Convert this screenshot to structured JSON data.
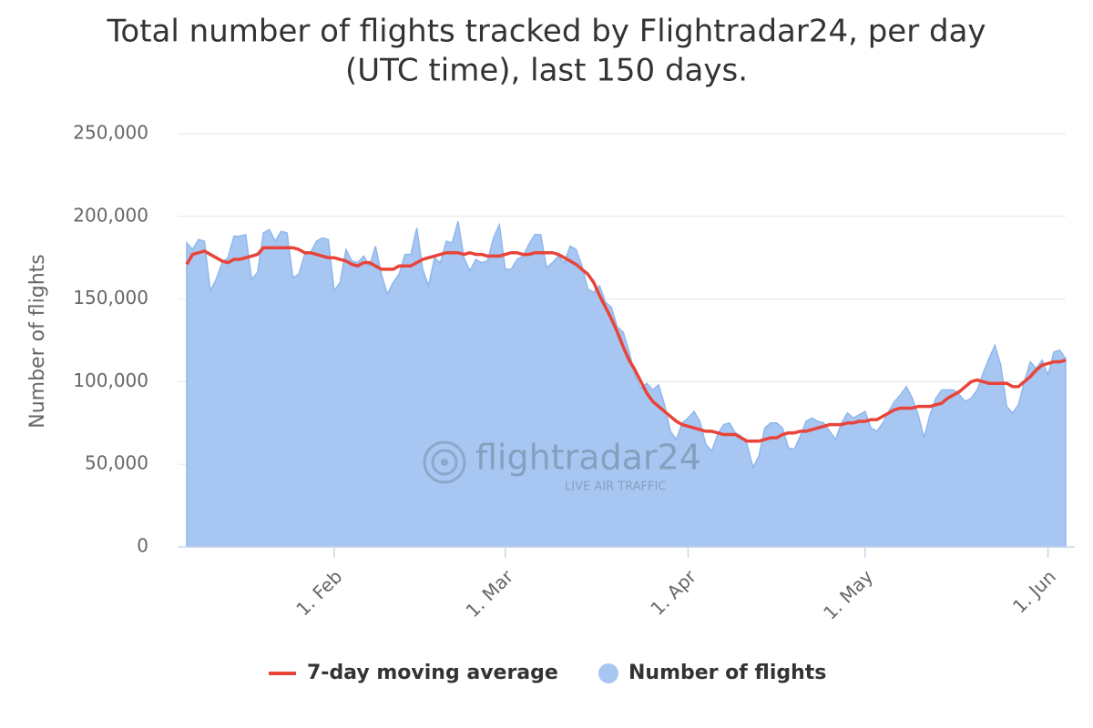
{
  "chart_data": {
    "type": "area",
    "title": "Total number of flights tracked by Flightradar24, per day",
    "subtitle": "(UTC time), last 150 days.",
    "y_label": "Number of flights",
    "watermark": {
      "brand": "flightradar24",
      "tagline": "LIVE AIR TRAFFIC"
    },
    "x": [
      0,
      1,
      2,
      3,
      4,
      5,
      6,
      7,
      8,
      9,
      10,
      11,
      12,
      13,
      14,
      15,
      16,
      17,
      18,
      19,
      20,
      21,
      22,
      23,
      24,
      25,
      26,
      27,
      28,
      29,
      30,
      31,
      32,
      33,
      34,
      35,
      36,
      37,
      38,
      39,
      40,
      41,
      42,
      43,
      44,
      45,
      46,
      47,
      48,
      49,
      50,
      51,
      52,
      53,
      54,
      55,
      56,
      57,
      58,
      59,
      60,
      61,
      62,
      63,
      64,
      65,
      66,
      67,
      68,
      69,
      70,
      71,
      72,
      73,
      74,
      75,
      76,
      77,
      78,
      79,
      80,
      81,
      82,
      83,
      84,
      85,
      86,
      87,
      88,
      89,
      90,
      91,
      92,
      93,
      94,
      95,
      96,
      97,
      98,
      99,
      100,
      101,
      102,
      103,
      104,
      105,
      106,
      107,
      108,
      109,
      110,
      111,
      112,
      113,
      114,
      115,
      116,
      117,
      118,
      119,
      120,
      121,
      122,
      123,
      124,
      125,
      126,
      127,
      128,
      129,
      130,
      131,
      132,
      133,
      134,
      135,
      136,
      137,
      138,
      139,
      140,
      141,
      142,
      143,
      144,
      145,
      146,
      147,
      148,
      149
    ],
    "xlim": [
      0,
      149
    ],
    "xticks": [
      {
        "value": 25,
        "label": "1. Feb"
      },
      {
        "value": 54,
        "label": "1. Mar"
      },
      {
        "value": 85,
        "label": "1. Apr"
      },
      {
        "value": 115,
        "label": "1. May"
      },
      {
        "value": 146,
        "label": "1. Jun"
      }
    ],
    "ylim": [
      0,
      250000
    ],
    "yticks": [
      0,
      {
        "value": 50000,
        "label": "50,000"
      },
      {
        "value": 100000,
        "label": "100,000"
      },
      {
        "value": 150000,
        "label": "150,000"
      },
      {
        "value": 200000,
        "label": "200,000"
      },
      {
        "value": 250000,
        "label": "250,000"
      }
    ],
    "grid": true,
    "legend": "bottom",
    "series": [
      {
        "name": "7-day moving average",
        "type": "line",
        "color": "#e8443a",
        "values": [
          171000,
          177000,
          178000,
          179000,
          177000,
          175000,
          173000,
          172000,
          174000,
          174000,
          175000,
          176000,
          177000,
          181000,
          181000,
          181000,
          181000,
          181000,
          181000,
          180000,
          178000,
          178000,
          177000,
          176000,
          175000,
          175000,
          174000,
          173000,
          171000,
          170000,
          172000,
          172000,
          170000,
          168000,
          168000,
          168000,
          170000,
          170000,
          170000,
          172000,
          174000,
          175000,
          176000,
          177000,
          178000,
          178000,
          178000,
          177000,
          178000,
          177000,
          177000,
          176000,
          176000,
          176000,
          177000,
          178000,
          178000,
          177000,
          177000,
          178000,
          178000,
          178000,
          178000,
          177000,
          175000,
          173000,
          171000,
          168000,
          165000,
          160000,
          152000,
          145000,
          138000,
          130000,
          121000,
          113000,
          107000,
          100000,
          93000,
          88000,
          85000,
          82000,
          79000,
          76000,
          74000,
          73000,
          72000,
          71000,
          70000,
          70000,
          69000,
          68000,
          68000,
          68000,
          66000,
          64000,
          64000,
          64000,
          65000,
          66000,
          66000,
          68000,
          69000,
          69000,
          70000,
          70000,
          71000,
          72000,
          73000,
          74000,
          74000,
          74000,
          75000,
          75000,
          76000,
          76000,
          77000,
          77000,
          79000,
          81000,
          83000,
          84000,
          84000,
          84000,
          85000,
          85000,
          85000,
          86000,
          87000,
          90000,
          92000,
          94000,
          97000,
          100000,
          101000,
          100000,
          99000,
          99000,
          99000,
          99000,
          97000,
          97000,
          100000,
          103000,
          107000,
          110000,
          111000,
          112000,
          112000,
          113000
        ]
      },
      {
        "name": "Number of flights",
        "type": "area",
        "color": "#a7c7f2",
        "values": [
          184000,
          180000,
          186000,
          185000,
          155000,
          162000,
          172000,
          175000,
          188000,
          188000,
          189000,
          162000,
          166000,
          190000,
          192000,
          185000,
          191000,
          190000,
          163000,
          165000,
          177000,
          178000,
          185000,
          187000,
          186000,
          155000,
          160000,
          180000,
          173000,
          172000,
          176000,
          170000,
          182000,
          165000,
          153000,
          160000,
          165000,
          177000,
          177000,
          193000,
          168000,
          158000,
          175000,
          172000,
          185000,
          184000,
          197000,
          175000,
          167000,
          174000,
          172000,
          173000,
          187000,
          195000,
          168000,
          168000,
          174000,
          176000,
          183000,
          189000,
          189000,
          169000,
          172000,
          176000,
          172000,
          182000,
          180000,
          170000,
          156000,
          154000,
          158000,
          148000,
          145000,
          133000,
          130000,
          118000,
          104000,
          96000,
          99000,
          95000,
          98000,
          86000,
          70000,
          65000,
          75000,
          78000,
          82000,
          76000,
          62000,
          58000,
          68000,
          74000,
          75000,
          69000,
          67000,
          62000,
          48000,
          55000,
          72000,
          75000,
          75000,
          72000,
          60000,
          59000,
          67000,
          76000,
          78000,
          76000,
          75000,
          70000,
          65000,
          75000,
          81000,
          78000,
          80000,
          82000,
          72000,
          70000,
          75000,
          82000,
          88000,
          92000,
          97000,
          90000,
          80000,
          66000,
          80000,
          90000,
          95000,
          95000,
          95000,
          92000,
          88000,
          90000,
          95000,
          105000,
          114000,
          122000,
          110000,
          85000,
          81000,
          86000,
          100000,
          112000,
          108000,
          113000,
          104000,
          118000,
          119000,
          114000
        ]
      }
    ]
  }
}
